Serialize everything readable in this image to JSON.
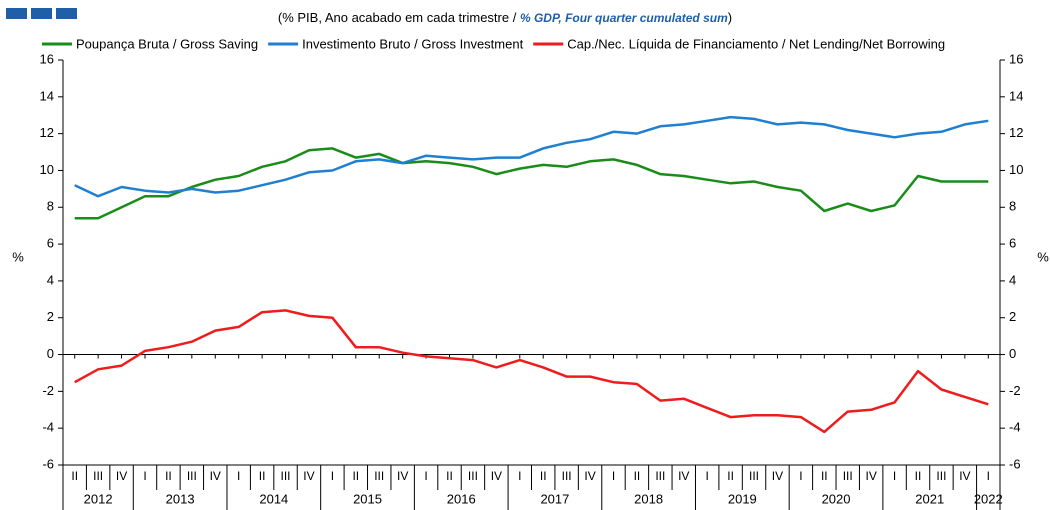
{
  "chart_data": {
    "type": "line",
    "subtitle": [
      "(% PIB, Ano acabado em cada trimestre / ",
      "% GDP, Four quarter cumulated sum",
      ")"
    ],
    "ylabel": "%",
    "y2label": "%",
    "category_groups": [
      {
        "name": "2012",
        "categories": [
          "II",
          "III",
          "IV"
        ]
      },
      {
        "name": "2013",
        "categories": [
          "I",
          "II",
          "III",
          "IV"
        ]
      },
      {
        "name": "2014",
        "categories": [
          "I",
          "II",
          "III",
          "IV"
        ]
      },
      {
        "name": "2015",
        "categories": [
          "I",
          "II",
          "III",
          "IV"
        ]
      },
      {
        "name": "2016",
        "categories": [
          "I",
          "II",
          "III",
          "IV"
        ]
      },
      {
        "name": "2017",
        "categories": [
          "I",
          "II",
          "III",
          "IV"
        ]
      },
      {
        "name": "2018",
        "categories": [
          "I",
          "II",
          "III",
          "IV"
        ]
      },
      {
        "name": "2019",
        "categories": [
          "I",
          "II",
          "III",
          "IV"
        ]
      },
      {
        "name": "2020",
        "categories": [
          "I",
          "II",
          "III",
          "IV"
        ]
      },
      {
        "name": "2021",
        "categories": [
          "I",
          "II",
          "III",
          "IV"
        ]
      },
      {
        "name": "2022",
        "categories": [
          "I"
        ]
      }
    ],
    "series": [
      {
        "name": "Poupança Bruta / Gross Saving",
        "color": "#1a8c1a",
        "values": [
          7.4,
          7.4,
          8.0,
          8.6,
          8.6,
          9.1,
          9.5,
          9.7,
          10.2,
          10.5,
          11.1,
          11.2,
          10.7,
          10.9,
          10.4,
          10.5,
          10.4,
          10.2,
          9.8,
          10.1,
          10.3,
          10.2,
          10.5,
          10.6,
          10.3,
          9.8,
          9.7,
          9.5,
          9.3,
          9.4,
          9.1,
          8.9,
          7.8,
          8.2,
          7.8,
          8.1,
          9.7,
          9.4,
          9.4,
          9.4
        ]
      },
      {
        "name": "Investimento Bruto / Gross Investment",
        "color": "#1f7fd0",
        "values": [
          9.2,
          8.6,
          9.1,
          8.9,
          8.8,
          9.0,
          8.8,
          8.9,
          9.2,
          9.5,
          9.9,
          10.0,
          10.5,
          10.6,
          10.4,
          10.8,
          10.7,
          10.6,
          10.7,
          10.7,
          11.2,
          11.5,
          11.7,
          12.1,
          12.0,
          12.4,
          12.5,
          12.7,
          12.9,
          12.8,
          12.5,
          12.6,
          12.5,
          12.2,
          12.0,
          11.8,
          12.0,
          12.1,
          12.5,
          12.7
        ]
      },
      {
        "name": "Cap./Nec. Líquida de Financiamento / Net Lending/Net Borrowing",
        "color": "#ee1c1c",
        "values": [
          -1.5,
          -0.8,
          -0.6,
          0.2,
          0.4,
          0.7,
          1.3,
          1.5,
          2.3,
          2.4,
          2.1,
          2.0,
          0.4,
          0.4,
          0.1,
          -0.1,
          -0.2,
          -0.3,
          -0.7,
          -0.3,
          -0.7,
          -1.2,
          -1.2,
          -1.5,
          -1.6,
          -2.5,
          -2.4,
          -2.9,
          -3.4,
          -3.3,
          -3.3,
          -3.4,
          -4.2,
          -3.1,
          -3.0,
          -2.6,
          -0.9,
          -1.9,
          -2.3,
          -2.7
        ]
      }
    ],
    "ylim": [
      -6,
      16
    ],
    "yticks": [
      -6,
      -4,
      -2,
      0,
      2,
      4,
      6,
      8,
      10,
      12,
      14,
      16
    ],
    "y2lim": [
      -6,
      16
    ],
    "y2ticks": [
      -6,
      -4,
      -2,
      0,
      2,
      4,
      6,
      8,
      10,
      12,
      14,
      16
    ]
  }
}
